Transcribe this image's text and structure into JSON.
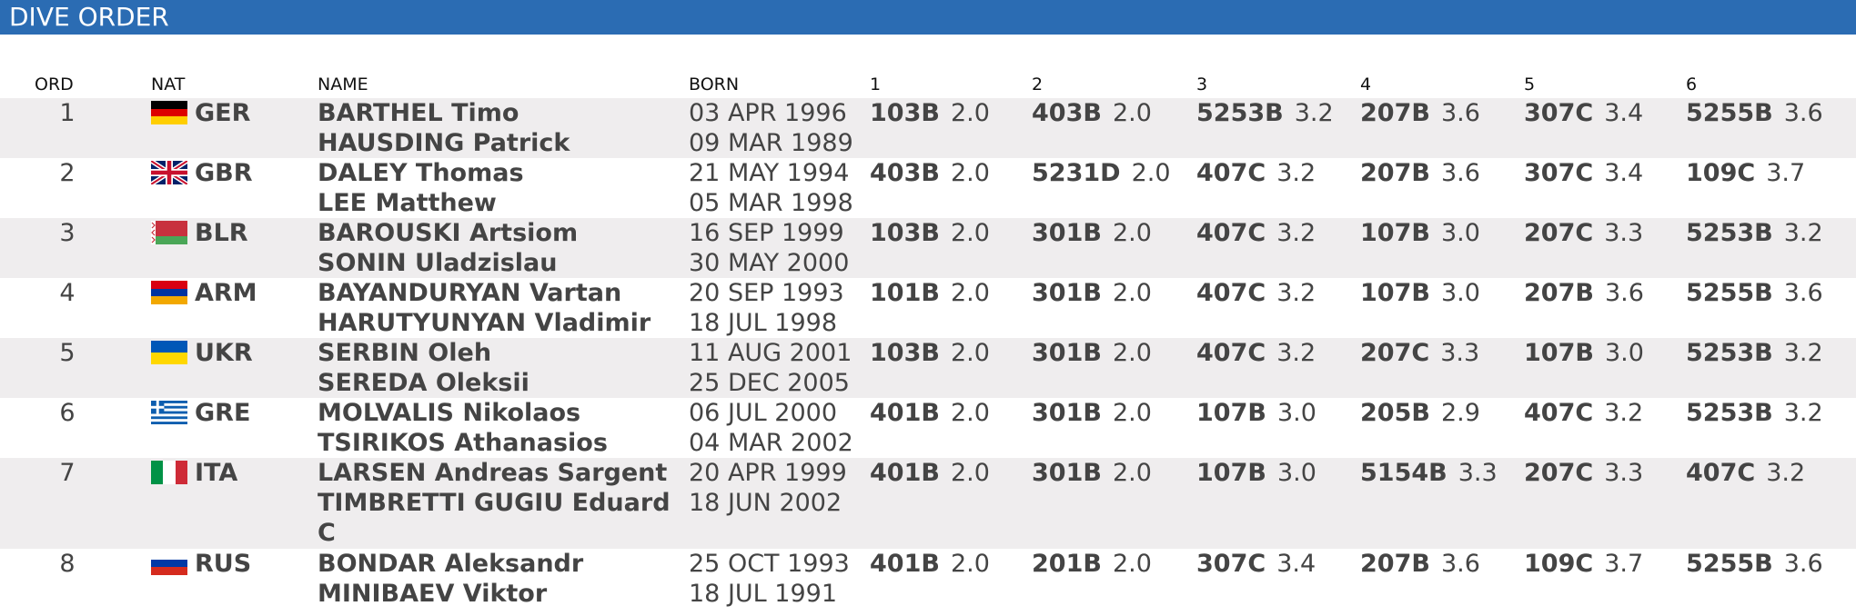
{
  "title": "DIVE ORDER",
  "headers": {
    "ord": "ORD",
    "nat": "NAT",
    "name": "NAME",
    "born": "BORN",
    "r1": "1",
    "r2": "2",
    "r3": "3",
    "r4": "4",
    "r5": "5",
    "r6": "6"
  },
  "rows": [
    {
      "ord": "1",
      "nat": "GER",
      "flag": "flag-germany-icon",
      "name1": "BARTHEL Timo",
      "name2": "HAUSDING Patrick",
      "born1": "03 APR 1996",
      "born2": "09 MAR 1989",
      "dives": [
        {
          "code": "103B",
          "dd": "2.0"
        },
        {
          "code": "403B",
          "dd": "2.0"
        },
        {
          "code": "5253B",
          "dd": "3.2"
        },
        {
          "code": "207B",
          "dd": "3.6"
        },
        {
          "code": "307C",
          "dd": "3.4"
        },
        {
          "code": "5255B",
          "dd": "3.6"
        }
      ]
    },
    {
      "ord": "2",
      "nat": "GBR",
      "flag": "flag-united-kingdom-icon",
      "name1": "DALEY Thomas",
      "name2": "LEE Matthew",
      "born1": "21 MAY 1994",
      "born2": "05 MAR 1998",
      "dives": [
        {
          "code": "403B",
          "dd": "2.0"
        },
        {
          "code": "5231D",
          "dd": "2.0"
        },
        {
          "code": "407C",
          "dd": "3.2"
        },
        {
          "code": "207B",
          "dd": "3.6"
        },
        {
          "code": "307C",
          "dd": "3.4"
        },
        {
          "code": "109C",
          "dd": "3.7"
        }
      ]
    },
    {
      "ord": "3",
      "nat": "BLR",
      "flag": "flag-belarus-icon",
      "name1": "BAROUSKI Artsiom",
      "name2": "SONIN Uladzislau",
      "born1": "16 SEP 1999",
      "born2": "30 MAY 2000",
      "dives": [
        {
          "code": "103B",
          "dd": "2.0"
        },
        {
          "code": "301B",
          "dd": "2.0"
        },
        {
          "code": "407C",
          "dd": "3.2"
        },
        {
          "code": "107B",
          "dd": "3.0"
        },
        {
          "code": "207C",
          "dd": "3.3"
        },
        {
          "code": "5253B",
          "dd": "3.2"
        }
      ]
    },
    {
      "ord": "4",
      "nat": "ARM",
      "flag": "flag-armenia-icon",
      "name1": "BAYANDURYAN Vartan",
      "name2": "HARUTYUNYAN Vladimir",
      "born1": "20 SEP 1993",
      "born2": "18 JUL 1998",
      "dives": [
        {
          "code": "101B",
          "dd": "2.0"
        },
        {
          "code": "301B",
          "dd": "2.0"
        },
        {
          "code": "407C",
          "dd": "3.2"
        },
        {
          "code": "107B",
          "dd": "3.0"
        },
        {
          "code": "207B",
          "dd": "3.6"
        },
        {
          "code": "5255B",
          "dd": "3.6"
        }
      ]
    },
    {
      "ord": "5",
      "nat": "UKR",
      "flag": "flag-ukraine-icon",
      "name1": "SERBIN Oleh",
      "name2": "SEREDA Oleksii",
      "born1": "11 AUG 2001",
      "born2": "25 DEC 2005",
      "dives": [
        {
          "code": "103B",
          "dd": "2.0"
        },
        {
          "code": "301B",
          "dd": "2.0"
        },
        {
          "code": "407C",
          "dd": "3.2"
        },
        {
          "code": "207C",
          "dd": "3.3"
        },
        {
          "code": "107B",
          "dd": "3.0"
        },
        {
          "code": "5253B",
          "dd": "3.2"
        }
      ]
    },
    {
      "ord": "6",
      "nat": "GRE",
      "flag": "flag-greece-icon",
      "name1": "MOLVALIS Nikolaos",
      "name2": "TSIRIKOS Athanasios",
      "born1": "06 JUL 2000",
      "born2": "04 MAR 2002",
      "dives": [
        {
          "code": "401B",
          "dd": "2.0"
        },
        {
          "code": "301B",
          "dd": "2.0"
        },
        {
          "code": "107B",
          "dd": "3.0"
        },
        {
          "code": "205B",
          "dd": "2.9"
        },
        {
          "code": "407C",
          "dd": "3.2"
        },
        {
          "code": "5253B",
          "dd": "3.2"
        }
      ]
    },
    {
      "ord": "7",
      "nat": "ITA",
      "flag": "flag-italy-icon",
      "name1": "LARSEN Andreas Sargent",
      "name2": "TIMBRETTI GUGIU Eduard C",
      "born1": "20 APR 1999",
      "born2": "18 JUN 2002",
      "dives": [
        {
          "code": "401B",
          "dd": "2.0"
        },
        {
          "code": "301B",
          "dd": "2.0"
        },
        {
          "code": "107B",
          "dd": "3.0"
        },
        {
          "code": "5154B",
          "dd": "3.3"
        },
        {
          "code": "207C",
          "dd": "3.3"
        },
        {
          "code": "407C",
          "dd": "3.2"
        }
      ]
    },
    {
      "ord": "8",
      "nat": "RUS",
      "flag": "flag-russia-icon",
      "name1": "BONDAR Aleksandr",
      "name2": "MINIBAEV Viktor",
      "born1": "25 OCT 1993",
      "born2": "18 JUL 1991",
      "dives": [
        {
          "code": "401B",
          "dd": "2.0"
        },
        {
          "code": "201B",
          "dd": "2.0"
        },
        {
          "code": "307C",
          "dd": "3.4"
        },
        {
          "code": "207B",
          "dd": "3.6"
        },
        {
          "code": "109C",
          "dd": "3.7"
        },
        {
          "code": "5255B",
          "dd": "3.6"
        }
      ]
    }
  ]
}
